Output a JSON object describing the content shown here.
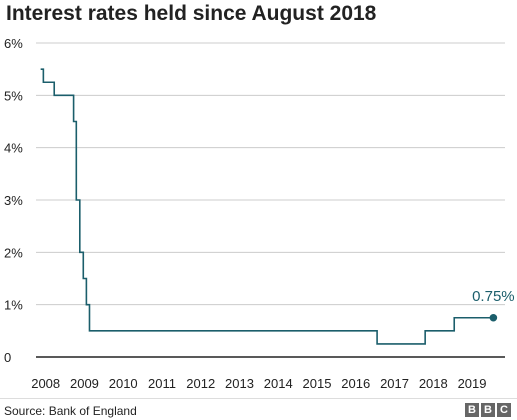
{
  "chart_data": {
    "type": "line",
    "title": "Interest rates held since August 2018",
    "xlabel": "",
    "ylabel": "",
    "xlim": [
      2007.8,
      2019.9
    ],
    "ylim": [
      0,
      6
    ],
    "y_ticks": [
      {
        "value": 0,
        "label": "0"
      },
      {
        "value": 1,
        "label": "1%"
      },
      {
        "value": 2,
        "label": "2%"
      },
      {
        "value": 3,
        "label": "3%"
      },
      {
        "value": 4,
        "label": "4%"
      },
      {
        "value": 5,
        "label": "5%"
      },
      {
        "value": 6,
        "label": "6%"
      }
    ],
    "x_ticks": [
      "2008",
      "2009",
      "2010",
      "2011",
      "2012",
      "2013",
      "2014",
      "2015",
      "2016",
      "2017",
      "2018",
      "2019"
    ],
    "grid": "horizontal",
    "series": [
      {
        "color": "#1b5e6b",
        "step": true,
        "points": [
          {
            "x": 2007.92,
            "y": 5.5
          },
          {
            "x": 2007.99,
            "y": 5.25
          },
          {
            "x": 2008.27,
            "y": 5.0
          },
          {
            "x": 2008.77,
            "y": 4.5
          },
          {
            "x": 2008.84,
            "y": 3.0
          },
          {
            "x": 2008.93,
            "y": 2.0
          },
          {
            "x": 2009.02,
            "y": 1.5
          },
          {
            "x": 2009.1,
            "y": 1.0
          },
          {
            "x": 2009.18,
            "y": 0.5
          },
          {
            "x": 2016.6,
            "y": 0.25
          },
          {
            "x": 2017.84,
            "y": 0.5
          },
          {
            "x": 2018.59,
            "y": 0.75
          },
          {
            "x": 2019.6,
            "y": 0.75
          }
        ]
      }
    ],
    "annotations": [
      {
        "text": "0.75%",
        "x": 2019.6,
        "y": 0.75
      }
    ]
  },
  "footer": {
    "source": "Source: Bank of England",
    "logo_letters": [
      "B",
      "B",
      "C"
    ]
  }
}
